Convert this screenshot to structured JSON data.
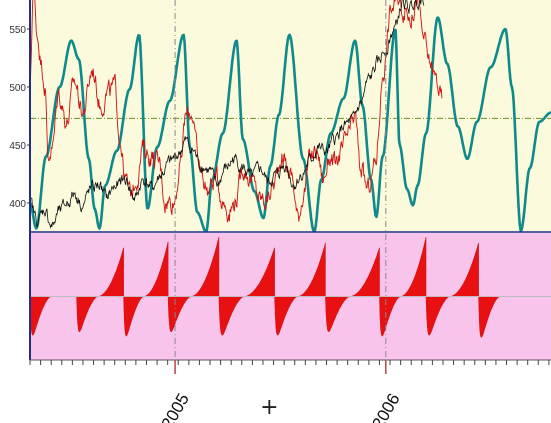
{
  "chart_data": {
    "type": "line",
    "title": "",
    "xlabel": "",
    "ylabel": "",
    "top_panel": {
      "background": "#FBFADC",
      "yticks": [
        "550",
        "500",
        "450",
        "400"
      ],
      "ylim": [
        375,
        575
      ],
      "reference_level": 473,
      "series": [
        {
          "color": "#0E8A8A",
          "style": "cycle",
          "points": [
            [
              0.0,
              400
            ],
            [
              0.3,
              378
            ],
            [
              0.75,
              440
            ],
            [
              1.4,
              500
            ],
            [
              1.95,
              540
            ],
            [
              2.3,
              524
            ],
            [
              2.78,
              438
            ],
            [
              3.05,
              395
            ],
            [
              3.28,
              378
            ],
            [
              3.55,
              415
            ],
            [
              4.1,
              445
            ],
            [
              4.7,
              498
            ],
            [
              5.15,
              545
            ],
            [
              5.55,
              395
            ],
            [
              6.0,
              448
            ],
            [
              6.6,
              488
            ],
            [
              7.25,
              545
            ],
            [
              7.55,
              448
            ],
            [
              7.9,
              392
            ],
            [
              8.32,
              375
            ],
            [
              8.6,
              420
            ],
            [
              9.1,
              460
            ],
            [
              9.75,
              540
            ],
            [
              10.05,
              455
            ],
            [
              10.6,
              410
            ],
            [
              11.02,
              387
            ],
            [
              11.35,
              432
            ],
            [
              11.75,
              476
            ],
            [
              12.25,
              545
            ],
            [
              12.9,
              438
            ],
            [
              13.42,
              375
            ],
            [
              13.75,
              420
            ],
            [
              14.2,
              460
            ],
            [
              14.8,
              490
            ],
            [
              15.35,
              540
            ],
            [
              15.7,
              484
            ],
            [
              16.1,
              420
            ],
            [
              16.35,
              388
            ],
            [
              16.65,
              440
            ],
            [
              17.25,
              550
            ],
            [
              17.45,
              450
            ],
            [
              17.8,
              412
            ],
            [
              18.08,
              398
            ],
            [
              18.3,
              415
            ],
            [
              18.7,
              460
            ],
            [
              19.25,
              560
            ],
            [
              19.7,
              520
            ],
            [
              20.2,
              466
            ],
            [
              20.65,
              438
            ],
            [
              21.1,
              470
            ],
            [
              21.75,
              517
            ],
            [
              22.45,
              550
            ],
            [
              22.75,
              500
            ],
            [
              23.18,
              376
            ],
            [
              23.6,
              430
            ],
            [
              24.05,
              470
            ],
            [
              24.6,
              478
            ]
          ]
        },
        {
          "color": "#CC1111",
          "style": "noisy",
          "points": [
            [
              0.0,
              500
            ],
            [
              0.15,
              583
            ],
            [
              0.35,
              545
            ],
            [
              0.55,
              520
            ],
            [
              0.7,
              503
            ],
            [
              0.85,
              440
            ],
            [
              1.05,
              448
            ],
            [
              1.35,
              494
            ],
            [
              1.75,
              470
            ],
            [
              2.1,
              505
            ],
            [
              2.5,
              478
            ],
            [
              2.95,
              515
            ],
            [
              3.35,
              483
            ],
            [
              3.65,
              495
            ],
            [
              4.0,
              500
            ],
            [
              4.25,
              456
            ],
            [
              4.5,
              420
            ],
            [
              4.75,
              408
            ],
            [
              5.05,
              422
            ],
            [
              5.35,
              448
            ],
            [
              5.7,
              440
            ],
            [
              6.1,
              435
            ],
            [
              6.4,
              401
            ],
            [
              6.8,
              402
            ],
            [
              7.1,
              432
            ],
            [
              7.35,
              475
            ],
            [
              7.65,
              478
            ],
            [
              8.0,
              430
            ],
            [
              8.4,
              412
            ],
            [
              8.8,
              423
            ],
            [
              9.1,
              402
            ],
            [
              9.4,
              393
            ],
            [
              9.75,
              404
            ],
            [
              10.05,
              430
            ],
            [
              10.45,
              420
            ],
            [
              10.85,
              404
            ],
            [
              11.15,
              402
            ],
            [
              11.5,
              416
            ],
            [
              11.9,
              441
            ],
            [
              12.35,
              424
            ],
            [
              12.65,
              388
            ],
            [
              12.95,
              412
            ],
            [
              13.25,
              440
            ],
            [
              13.55,
              445
            ],
            [
              13.85,
              420
            ],
            [
              14.15,
              440
            ],
            [
              14.45,
              432
            ],
            [
              14.7,
              444
            ],
            [
              15.0,
              458
            ],
            [
              15.35,
              474
            ],
            [
              15.6,
              430
            ],
            [
              15.95,
              412
            ],
            [
              16.3,
              434
            ],
            [
              16.7,
              516
            ],
            [
              17.05,
              568
            ],
            [
              17.35,
              574
            ],
            [
              17.7,
              566
            ],
            [
              18.0,
              561
            ],
            [
              18.3,
              578
            ],
            [
              18.55,
              545
            ],
            [
              18.85,
              522
            ],
            [
              19.15,
              508
            ],
            [
              19.45,
              490
            ]
          ]
        },
        {
          "color": "#111111",
          "style": "noisy",
          "points": [
            [
              0.0,
              400
            ],
            [
              0.35,
              385
            ],
            [
              0.7,
              394
            ],
            [
              1.05,
              380
            ],
            [
              1.4,
              393
            ],
            [
              1.75,
              400
            ],
            [
              2.1,
              408
            ],
            [
              2.5,
              398
            ],
            [
              2.85,
              412
            ],
            [
              3.25,
              416
            ],
            [
              3.6,
              405
            ],
            [
              4.0,
              414
            ],
            [
              4.5,
              420
            ],
            [
              4.95,
              404
            ],
            [
              5.35,
              420
            ],
            [
              5.75,
              413
            ],
            [
              6.2,
              424
            ],
            [
              6.6,
              435
            ],
            [
              7.0,
              442
            ],
            [
              7.35,
              453
            ],
            [
              7.7,
              445
            ],
            [
              8.05,
              433
            ],
            [
              8.45,
              428
            ],
            [
              8.85,
              416
            ],
            [
              9.25,
              430
            ],
            [
              9.65,
              438
            ],
            [
              10.05,
              430
            ],
            [
              10.45,
              422
            ],
            [
              10.85,
              430
            ],
            [
              11.25,
              418
            ],
            [
              11.65,
              424
            ],
            [
              12.05,
              433
            ],
            [
              12.45,
              416
            ],
            [
              12.85,
              424
            ],
            [
              13.2,
              436
            ],
            [
              13.6,
              447
            ],
            [
              14.0,
              444
            ],
            [
              14.4,
              455
            ],
            [
              14.8,
              466
            ],
            [
              15.2,
              470
            ],
            [
              15.6,
              485
            ],
            [
              16.0,
              506
            ],
            [
              16.4,
              520
            ],
            [
              16.8,
              533
            ],
            [
              17.2,
              550
            ],
            [
              17.6,
              572
            ],
            [
              17.95,
              568
            ],
            [
              18.3,
              575
            ],
            [
              18.6,
              578
            ]
          ]
        }
      ]
    },
    "bottom_panel": {
      "background": "#F8C4EC",
      "style": "gradient-oscillator",
      "waves": [
        {
          "x0": 0.0,
          "x1": 2.2,
          "low": -0.9,
          "high": 0.0
        },
        {
          "x0": 2.2,
          "x1": 4.42,
          "low": -0.82,
          "high": 0.82
        },
        {
          "x0": 4.42,
          "x1": 6.52,
          "low": -0.92,
          "high": 0.92
        },
        {
          "x0": 6.52,
          "x1": 8.92,
          "low": -0.82,
          "high": 1.0
        },
        {
          "x0": 8.92,
          "x1": 11.55,
          "low": -0.9,
          "high": 0.82
        },
        {
          "x0": 11.55,
          "x1": 13.95,
          "low": -0.9,
          "high": 0.9
        },
        {
          "x0": 13.95,
          "x1": 16.5,
          "low": -0.82,
          "high": 0.82
        },
        {
          "x0": 16.5,
          "x1": 18.7,
          "low": -0.92,
          "high": 1.0
        },
        {
          "x0": 18.7,
          "x1": 21.18,
          "low": -0.9,
          "high": 0.9
        },
        {
          "x0": 21.18,
          "x1": 23.4,
          "low": -0.95,
          "high": 0.0
        }
      ]
    },
    "xaxis": {
      "xlim": [
        0,
        24.6
      ],
      "year_markers": [
        {
          "label": "2005",
          "x": 6.85
        },
        {
          "label": "2006",
          "x": 16.8
        }
      ],
      "cursor_glyph": "+",
      "cursor_x": 11.3
    },
    "colors": {
      "frame": "#1F2E8C",
      "cycle": "#0E8A8A",
      "red": "#CC1111",
      "black": "#111111",
      "reference_line": "#6B8E23",
      "grid": "#888888",
      "year_marker": "#B84444"
    }
  }
}
